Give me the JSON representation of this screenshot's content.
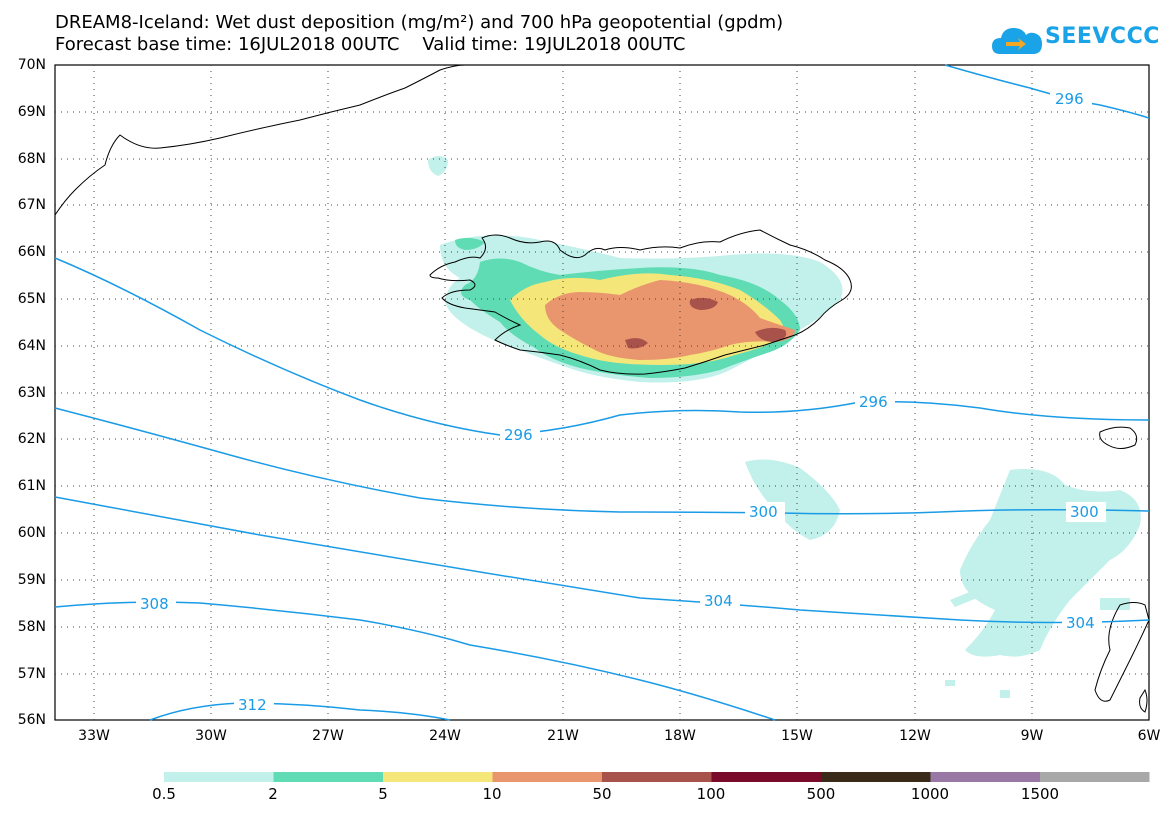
{
  "title": {
    "line1": "DREAM8-Iceland: Wet dust deposition (mg/m²) and 700 hPa geopotential (gpdm)",
    "line2": "Forecast base time: 16JUL2018 00UTC    Valid time: 19JUL2018 00UTC"
  },
  "logo": {
    "text": "SEEVCCC",
    "icon": "cloud-icon",
    "color": "#1aa3e6"
  },
  "map": {
    "lat_labels": [
      "70N",
      "69N",
      "68N",
      "67N",
      "66N",
      "65N",
      "64N",
      "63N",
      "62N",
      "61N",
      "60N",
      "59N",
      "58N",
      "57N",
      "56N"
    ],
    "lon_labels": [
      "33W",
      "30W",
      "27W",
      "24W",
      "21W",
      "18W",
      "15W",
      "12W",
      "9W",
      "6W"
    ],
    "contour_color": "#1a9be6",
    "contour_labels": [
      {
        "value": "296",
        "text": "296"
      },
      {
        "value": "296",
        "text": "296"
      },
      {
        "value": "296",
        "text": "296"
      },
      {
        "value": "300",
        "text": "300"
      },
      {
        "value": "300",
        "text": "300"
      },
      {
        "value": "304",
        "text": "304"
      },
      {
        "value": "304",
        "text": "304"
      },
      {
        "value": "308",
        "text": "308"
      },
      {
        "value": "312",
        "text": "312"
      }
    ]
  },
  "colorbar": {
    "labels": [
      "0.5",
      "2",
      "5",
      "10",
      "50",
      "100",
      "500",
      "1000",
      "1500"
    ],
    "colors": [
      "#c2f0ea",
      "#5fdcb4",
      "#f5e67a",
      "#e9966e",
      "#a8524c",
      "#7a0a2a",
      "#3a2a1a",
      "#9a78a6",
      "#a8a8a8"
    ]
  }
}
